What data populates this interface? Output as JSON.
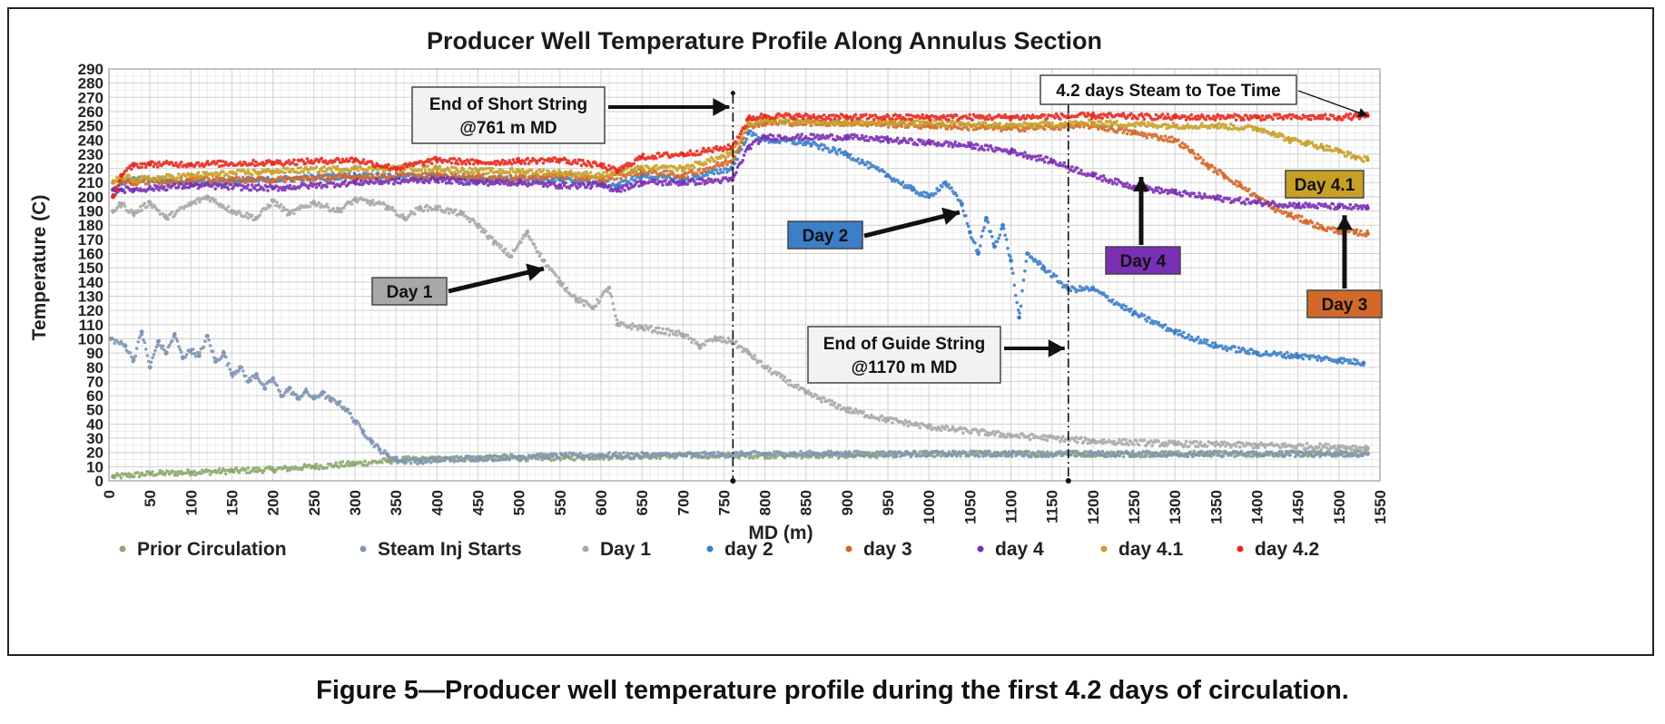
{
  "chart_data": {
    "type": "scatter",
    "title": "Producer Well Temperature Profile Along Annulus Section",
    "xlabel": "MD (m)",
    "ylabel": "Temperature (C)",
    "xlim": [
      0,
      1550
    ],
    "ylim": [
      0,
      290
    ],
    "x_ticks": [
      0,
      50,
      100,
      150,
      200,
      250,
      300,
      350,
      400,
      450,
      500,
      550,
      600,
      650,
      700,
      750,
      800,
      850,
      900,
      950,
      1000,
      1050,
      1100,
      1150,
      1200,
      1250,
      1300,
      1350,
      1400,
      1450,
      1500,
      1550
    ],
    "y_ticks": [
      0,
      10,
      20,
      30,
      40,
      50,
      60,
      70,
      80,
      90,
      100,
      110,
      120,
      130,
      140,
      150,
      160,
      170,
      180,
      190,
      200,
      210,
      220,
      230,
      240,
      250,
      260,
      270,
      280,
      290
    ],
    "grid": true,
    "legend_position": "bottom",
    "series": [
      {
        "name": "Prior Circulation",
        "color": "#8aa86e",
        "x": [
          5,
          50,
          100,
          150,
          200,
          250,
          300,
          340,
          360,
          400,
          450,
          500,
          600,
          700,
          800,
          900,
          1000,
          1100,
          1200,
          1300,
          1400,
          1500,
          1535
        ],
        "y": [
          3,
          5,
          6,
          7,
          8,
          10,
          12,
          14,
          15,
          15,
          16,
          16,
          17,
          18,
          18,
          18,
          19,
          19,
          19,
          19,
          19,
          19,
          19
        ]
      },
      {
        "name": "Steam Inj Starts",
        "color": "#8096b4",
        "x": [
          2,
          20,
          30,
          40,
          50,
          60,
          70,
          80,
          90,
          100,
          110,
          120,
          130,
          140,
          150,
          160,
          170,
          180,
          190,
          200,
          210,
          220,
          230,
          240,
          250,
          260,
          270,
          280,
          290,
          300,
          310,
          320,
          330,
          340,
          350,
          360,
          380,
          400,
          450,
          500,
          600,
          700,
          800,
          900,
          1000,
          1100,
          1200,
          1300,
          1400,
          1500,
          1535
        ],
        "y": [
          100,
          95,
          85,
          105,
          80,
          98,
          90,
          103,
          87,
          92,
          88,
          102,
          84,
          90,
          75,
          80,
          70,
          75,
          65,
          72,
          60,
          65,
          58,
          63,
          58,
          62,
          57,
          55,
          50,
          42,
          35,
          28,
          22,
          18,
          15,
          14,
          14,
          15,
          16,
          17,
          18,
          18,
          19,
          19,
          19,
          19,
          19,
          19,
          19,
          19,
          19
        ]
      },
      {
        "name": "Day 1",
        "color": "#a8a8a8",
        "x": [
          5,
          15,
          30,
          50,
          70,
          100,
          120,
          150,
          180,
          200,
          220,
          250,
          280,
          300,
          320,
          340,
          360,
          380,
          400,
          430,
          450,
          470,
          490,
          510,
          530,
          550,
          570,
          590,
          610,
          620,
          650,
          700,
          720,
          740,
          760,
          780,
          800,
          850,
          900,
          950,
          1000,
          1100,
          1200,
          1300,
          1400,
          1500,
          1535
        ],
        "y": [
          190,
          195,
          188,
          196,
          185,
          195,
          200,
          190,
          185,
          197,
          188,
          196,
          190,
          198,
          196,
          193,
          185,
          192,
          192,
          188,
          180,
          168,
          158,
          175,
          155,
          140,
          128,
          122,
          136,
          110,
          108,
          103,
          95,
          100,
          98,
          90,
          80,
          62,
          50,
          43,
          38,
          32,
          28,
          26,
          25,
          24,
          23
        ]
      },
      {
        "name": "day 2",
        "color": "#3c7ec8",
        "x": [
          5,
          15,
          30,
          100,
          200,
          300,
          400,
          450,
          500,
          550,
          600,
          620,
          650,
          700,
          760,
          780,
          800,
          850,
          900,
          950,
          980,
          1000,
          1020,
          1040,
          1050,
          1060,
          1070,
          1080,
          1090,
          1100,
          1110,
          1120,
          1140,
          1170,
          1200,
          1250,
          1300,
          1350,
          1400,
          1450,
          1500,
          1530
        ],
        "y": [
          200,
          210,
          212,
          210,
          212,
          215,
          214,
          212,
          213,
          212,
          210,
          208,
          215,
          212,
          220,
          245,
          240,
          238,
          230,
          215,
          205,
          200,
          210,
          195,
          175,
          160,
          185,
          165,
          180,
          155,
          115,
          160,
          150,
          135,
          135,
          118,
          105,
          95,
          90,
          88,
          85,
          83
        ]
      },
      {
        "name": "day 3",
        "color": "#d2692a",
        "x": [
          5,
          15,
          30,
          100,
          200,
          300,
          400,
          450,
          500,
          550,
          600,
          650,
          700,
          760,
          780,
          800,
          900,
          1000,
          1100,
          1200,
          1250,
          1300,
          1320,
          1340,
          1360,
          1380,
          1400,
          1420,
          1440,
          1460,
          1480,
          1500,
          1520,
          1535
        ],
        "y": [
          205,
          212,
          210,
          212,
          212,
          214,
          215,
          214,
          213,
          215,
          212,
          218,
          215,
          225,
          250,
          252,
          252,
          250,
          248,
          250,
          245,
          240,
          232,
          222,
          215,
          208,
          200,
          192,
          187,
          183,
          178,
          176,
          175,
          174
        ]
      },
      {
        "name": "day 4",
        "color": "#7a2fb4",
        "x": [
          5,
          15,
          30,
          100,
          200,
          300,
          400,
          450,
          500,
          550,
          600,
          620,
          650,
          700,
          760,
          780,
          800,
          900,
          950,
          1000,
          1050,
          1100,
          1150,
          1200,
          1250,
          1300,
          1350,
          1400,
          1450,
          1500,
          1535
        ],
        "y": [
          205,
          205,
          205,
          208,
          206,
          210,
          212,
          210,
          210,
          208,
          208,
          205,
          210,
          210,
          212,
          235,
          242,
          242,
          240,
          238,
          236,
          232,
          225,
          215,
          207,
          203,
          199,
          196,
          194,
          193,
          192
        ]
      },
      {
        "name": "day 4.1",
        "color": "#c8a028",
        "x": [
          5,
          15,
          30,
          100,
          200,
          300,
          400,
          450,
          500,
          550,
          600,
          650,
          700,
          760,
          780,
          800,
          900,
          1000,
          1100,
          1200,
          1300,
          1350,
          1400,
          1420,
          1440,
          1460,
          1480,
          1500,
          1520,
          1535
        ],
        "y": [
          210,
          215,
          212,
          215,
          218,
          220,
          220,
          218,
          218,
          217,
          215,
          220,
          220,
          230,
          252,
          254,
          252,
          252,
          250,
          252,
          250,
          250,
          248,
          245,
          240,
          238,
          235,
          232,
          228,
          226
        ]
      },
      {
        "name": "day 4.2",
        "color": "#e8281e",
        "x": [
          5,
          15,
          30,
          50,
          100,
          200,
          300,
          350,
          400,
          450,
          500,
          550,
          600,
          620,
          650,
          700,
          760,
          780,
          800,
          900,
          1000,
          1100,
          1200,
          1300,
          1400,
          1500,
          1535
        ],
        "y": [
          200,
          215,
          222,
          223,
          223,
          224,
          226,
          220,
          226,
          224,
          225,
          226,
          222,
          218,
          228,
          230,
          235,
          255,
          257,
          256,
          256,
          256,
          257,
          256,
          256,
          256,
          257
        ]
      }
    ],
    "annotations": [
      {
        "text_lines": [
          "End of Short String",
          "@761 m MD"
        ],
        "x": 761
      },
      {
        "text_lines": [
          "End of Guide String",
          "@1170 m MD"
        ],
        "x": 1170
      },
      {
        "text_lines": [
          "4.2 days Steam to Toe Time"
        ]
      }
    ],
    "day_labels": [
      "Day 1",
      "Day 2",
      "Day 3",
      "Day 4",
      "Day 4.1"
    ]
  },
  "caption": "Figure 5—Producer well temperature profile during the first 4.2 days of circulation."
}
